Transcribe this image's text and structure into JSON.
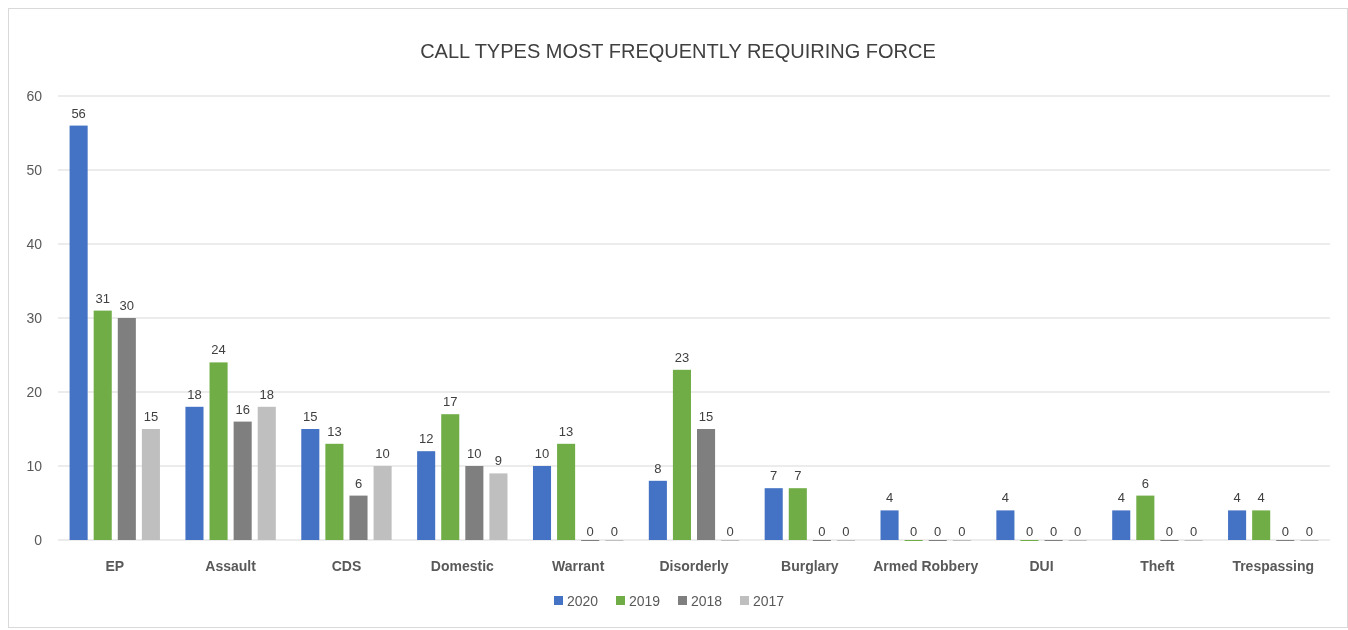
{
  "chart_data": {
    "type": "bar",
    "title": "CALL TYPES MOST FREQUENTLY REQUIRING FORCE",
    "categories": [
      "EP",
      "Assault",
      "CDS",
      "Domestic",
      "Warrant",
      "Disorderly",
      "Burglary",
      "Armed Robbery",
      "DUI",
      "Theft",
      "Trespassing"
    ],
    "series": [
      {
        "name": "2020",
        "color": "#4472c4",
        "values": [
          56,
          18,
          15,
          12,
          10,
          8,
          7,
          4,
          4,
          4,
          4
        ]
      },
      {
        "name": "2019",
        "color": "#70ad47",
        "values": [
          31,
          24,
          13,
          17,
          13,
          23,
          7,
          0,
          0,
          6,
          4
        ]
      },
      {
        "name": "2018",
        "color": "#7f7f7f",
        "values": [
          30,
          16,
          6,
          10,
          0,
          15,
          0,
          0,
          0,
          0,
          0
        ]
      },
      {
        "name": "2017",
        "color": "#bfbfbf",
        "values": [
          15,
          18,
          10,
          9,
          0,
          0,
          0,
          0,
          0,
          0,
          0
        ]
      }
    ],
    "ylim": [
      0,
      60
    ],
    "yticks": [
      0,
      10,
      20,
      30,
      40,
      50,
      60
    ],
    "grid": "y",
    "legend": "bottom",
    "data_labels": true
  }
}
